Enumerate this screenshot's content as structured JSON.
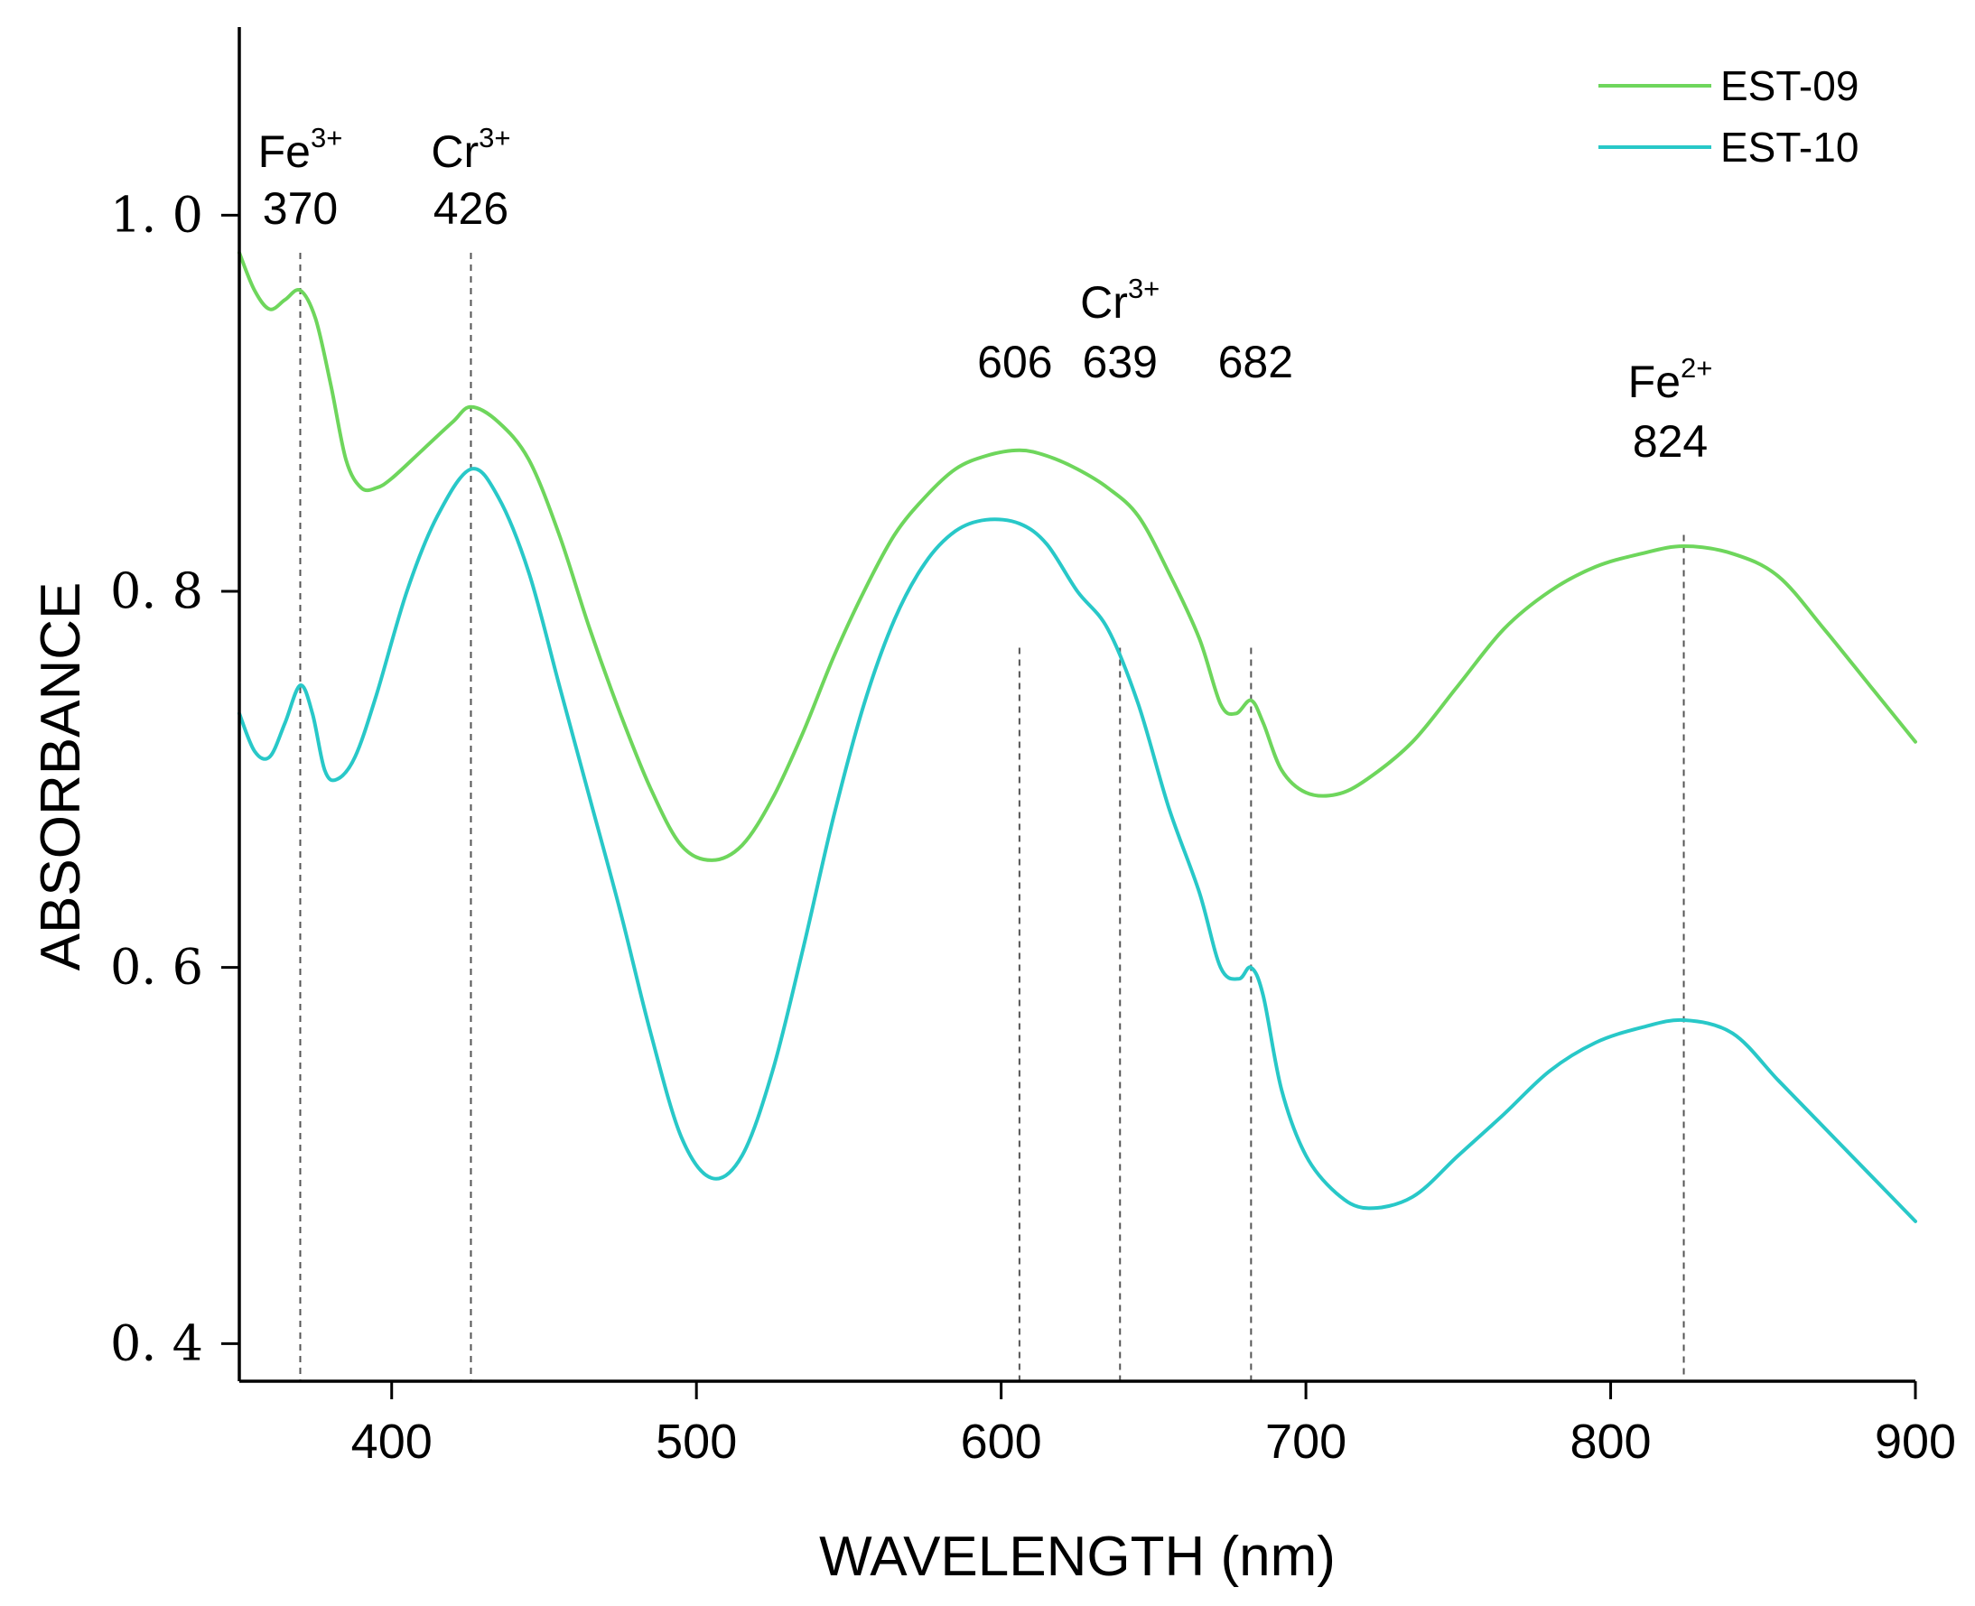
{
  "chart_data": {
    "type": "line",
    "title": "",
    "xlabel": "WAVELENGTH (nm)",
    "ylabel": "ABSORBANCE",
    "xlim": [
      350,
      900
    ],
    "ylim": [
      0.38,
      1.1
    ],
    "xticks": [
      400,
      500,
      600,
      700,
      800,
      900
    ],
    "xtick_labels": [
      "400",
      "500",
      "600",
      "700",
      "800",
      "900"
    ],
    "yticks": [
      0.4,
      0.6,
      0.8,
      1.0
    ],
    "ytick_labels": [
      "0. 4",
      "0. 6",
      "0. 8",
      "1. 0"
    ],
    "grid": false,
    "legend_position": "top-right",
    "series": [
      {
        "name": "EST-09",
        "color": "#6ed65c",
        "points": [
          [
            350,
            0.98
          ],
          [
            355,
            0.96
          ],
          [
            360,
            0.95
          ],
          [
            365,
            0.955
          ],
          [
            370,
            0.96
          ],
          [
            375,
            0.945
          ],
          [
            380,
            0.91
          ],
          [
            385,
            0.87
          ],
          [
            390,
            0.855
          ],
          [
            395,
            0.855
          ],
          [
            400,
            0.86
          ],
          [
            410,
            0.875
          ],
          [
            420,
            0.89
          ],
          [
            426,
            0.898
          ],
          [
            435,
            0.89
          ],
          [
            445,
            0.87
          ],
          [
            455,
            0.83
          ],
          [
            465,
            0.78
          ],
          [
            475,
            0.735
          ],
          [
            485,
            0.695
          ],
          [
            495,
            0.665
          ],
          [
            505,
            0.657
          ],
          [
            515,
            0.665
          ],
          [
            525,
            0.69
          ],
          [
            535,
            0.725
          ],
          [
            545,
            0.765
          ],
          [
            555,
            0.8
          ],
          [
            565,
            0.83
          ],
          [
            575,
            0.85
          ],
          [
            585,
            0.865
          ],
          [
            595,
            0.872
          ],
          [
            606,
            0.875
          ],
          [
            615,
            0.872
          ],
          [
            625,
            0.865
          ],
          [
            635,
            0.855
          ],
          [
            645,
            0.84
          ],
          [
            655,
            0.81
          ],
          [
            665,
            0.775
          ],
          [
            672,
            0.74
          ],
          [
            677,
            0.735
          ],
          [
            682,
            0.742
          ],
          [
            686,
            0.73
          ],
          [
            692,
            0.705
          ],
          [
            700,
            0.693
          ],
          [
            710,
            0.692
          ],
          [
            720,
            0.7
          ],
          [
            735,
            0.72
          ],
          [
            750,
            0.75
          ],
          [
            765,
            0.78
          ],
          [
            780,
            0.8
          ],
          [
            795,
            0.813
          ],
          [
            810,
            0.82
          ],
          [
            824,
            0.824
          ],
          [
            840,
            0.82
          ],
          [
            855,
            0.808
          ],
          [
            870,
            0.78
          ],
          [
            885,
            0.75
          ],
          [
            900,
            0.72
          ]
        ]
      },
      {
        "name": "EST-10",
        "color": "#28c8c8",
        "points": [
          [
            350,
            0.735
          ],
          [
            355,
            0.715
          ],
          [
            360,
            0.712
          ],
          [
            365,
            0.73
          ],
          [
            370,
            0.75
          ],
          [
            374,
            0.735
          ],
          [
            378,
            0.705
          ],
          [
            382,
            0.7
          ],
          [
            388,
            0.712
          ],
          [
            395,
            0.745
          ],
          [
            405,
            0.8
          ],
          [
            415,
            0.84
          ],
          [
            426,
            0.865
          ],
          [
            435,
            0.85
          ],
          [
            445,
            0.81
          ],
          [
            455,
            0.75
          ],
          [
            465,
            0.69
          ],
          [
            475,
            0.63
          ],
          [
            485,
            0.565
          ],
          [
            495,
            0.51
          ],
          [
            505,
            0.488
          ],
          [
            515,
            0.5
          ],
          [
            525,
            0.545
          ],
          [
            535,
            0.61
          ],
          [
            545,
            0.68
          ],
          [
            555,
            0.74
          ],
          [
            565,
            0.785
          ],
          [
            575,
            0.815
          ],
          [
            585,
            0.832
          ],
          [
            595,
            0.838
          ],
          [
            606,
            0.836
          ],
          [
            615,
            0.825
          ],
          [
            625,
            0.8
          ],
          [
            635,
            0.78
          ],
          [
            645,
            0.74
          ],
          [
            655,
            0.685
          ],
          [
            665,
            0.64
          ],
          [
            672,
            0.6
          ],
          [
            678,
            0.594
          ],
          [
            682,
            0.6
          ],
          [
            686,
            0.585
          ],
          [
            692,
            0.535
          ],
          [
            700,
            0.5
          ],
          [
            710,
            0.48
          ],
          [
            720,
            0.472
          ],
          [
            735,
            0.478
          ],
          [
            750,
            0.5
          ],
          [
            765,
            0.522
          ],
          [
            780,
            0.545
          ],
          [
            795,
            0.56
          ],
          [
            810,
            0.568
          ],
          [
            824,
            0.572
          ],
          [
            840,
            0.565
          ],
          [
            855,
            0.54
          ],
          [
            870,
            0.515
          ],
          [
            885,
            0.49
          ],
          [
            900,
            0.465
          ]
        ]
      }
    ],
    "annotations": [
      {
        "wavelength": 370,
        "ion": "Fe",
        "charge": "3+",
        "value": "370"
      },
      {
        "wavelength": 426,
        "ion": "Cr",
        "charge": "3+",
        "value": "426"
      },
      {
        "wavelength": 606,
        "ion": "",
        "charge": "",
        "value": "606"
      },
      {
        "wavelength": 639,
        "ion": "Cr",
        "charge": "3+",
        "value": "639"
      },
      {
        "wavelength": 682,
        "ion": "",
        "charge": "",
        "value": "682"
      },
      {
        "wavelength": 824,
        "ion": "Fe",
        "charge": "2+",
        "value": "824"
      }
    ],
    "vlines_bottom": 0.38,
    "vlines_top": [
      0.98,
      0.98,
      0.77,
      0.77,
      0.77,
      0.83
    ]
  }
}
